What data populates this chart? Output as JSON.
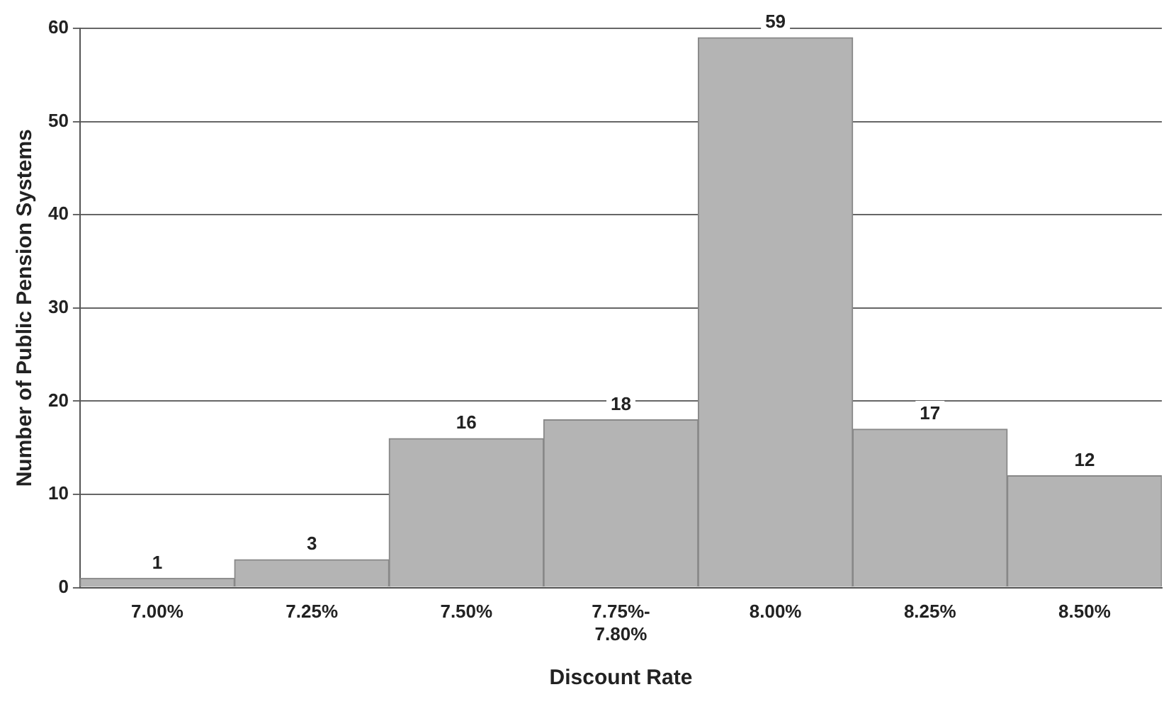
{
  "chart_data": {
    "type": "bar",
    "xlabel": "Discount Rate",
    "ylabel": "Number of Public Pension Systems",
    "categories": [
      "7.00%",
      "7.25%",
      "7.50%",
      "7.75%-7.80%",
      "8.00%",
      "8.25%",
      "8.50%"
    ],
    "values": [
      1,
      3,
      16,
      18,
      59,
      17,
      12
    ],
    "color": "#b4b4b4",
    "ylim": [
      0,
      60
    ],
    "yticks": [
      0,
      10,
      20,
      30,
      40,
      50,
      60
    ],
    "grid": "y",
    "data_labels": true
  }
}
